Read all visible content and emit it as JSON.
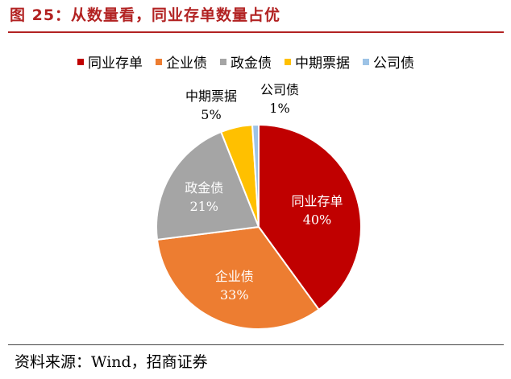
{
  "header": {
    "title": "图 25：从数量看，同业存单数量占优"
  },
  "footer": {
    "source": "资料来源：Wind，招商证券"
  },
  "chart_data": {
    "type": "pie",
    "categories": [
      "同业存单",
      "企业债",
      "政金债",
      "中期票据",
      "公司债"
    ],
    "values": [
      40,
      33,
      21,
      5,
      1
    ],
    "value_labels": [
      "40%",
      "33%",
      "21%",
      "5%",
      "1%"
    ],
    "colors": [
      "#c00000",
      "#ed7d31",
      "#a5a5a5",
      "#ffc000",
      "#9dc3e6"
    ],
    "label_colors": [
      "#ffffff",
      "#ffffff",
      "#ffffff",
      "#000000",
      "#000000"
    ],
    "legend": "top"
  }
}
